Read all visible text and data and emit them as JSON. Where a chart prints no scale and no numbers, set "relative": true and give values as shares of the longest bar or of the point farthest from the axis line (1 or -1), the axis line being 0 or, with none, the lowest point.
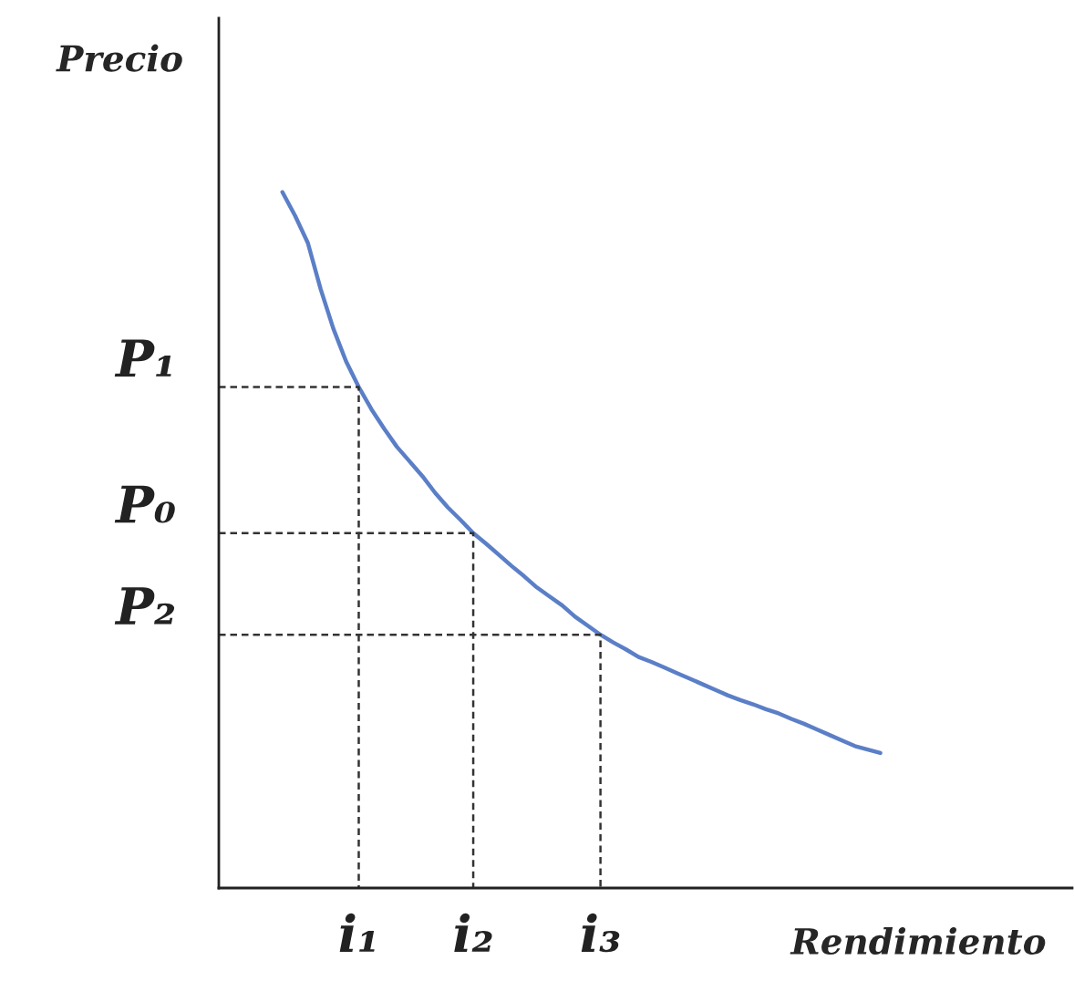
{
  "chart_data": {
    "type": "line",
    "relative": true,
    "xlabel": "Rendimiento",
    "ylabel": "Precio",
    "categories": [
      null,
      null,
      null,
      null,
      null,
      null,
      null,
      null,
      null,
      null,
      null,
      "i₁",
      null,
      null,
      null,
      null,
      null,
      null,
      null,
      null,
      "i₂",
      null,
      null,
      null,
      null,
      null,
      null,
      null,
      null,
      null,
      "i₃",
      null,
      null,
      null,
      null,
      null,
      null,
      null,
      null,
      null,
      null,
      null,
      null,
      null,
      null,
      null,
      null,
      null,
      null,
      null,
      null,
      null,
      null
    ],
    "annotations": [
      "P₁",
      "P₀",
      "P₂"
    ],
    "legend": false,
    "marker": "none",
    "series": [
      {
        "color": "#5b7fc7",
        "line_style": "solid",
        "values": [
          null,
          null,
          null,
          null,
          null,
          1.0,
          0.966,
          0.927,
          0.861,
          0.804,
          0.757,
          0.72,
          0.688,
          0.66,
          0.634,
          0.613,
          0.592,
          0.568,
          0.547,
          0.529,
          0.51,
          0.495,
          0.479,
          0.463,
          0.448,
          0.432,
          0.419,
          0.406,
          0.39,
          0.377,
          0.364,
          0.353,
          0.343,
          0.332,
          0.325,
          0.317,
          0.309,
          0.301,
          0.293,
          0.285,
          0.277,
          0.27,
          0.264,
          0.257,
          0.251,
          0.243,
          0.236,
          0.228,
          0.22,
          0.212,
          0.204,
          0.199,
          0.194
        ]
      }
    ]
  }
}
